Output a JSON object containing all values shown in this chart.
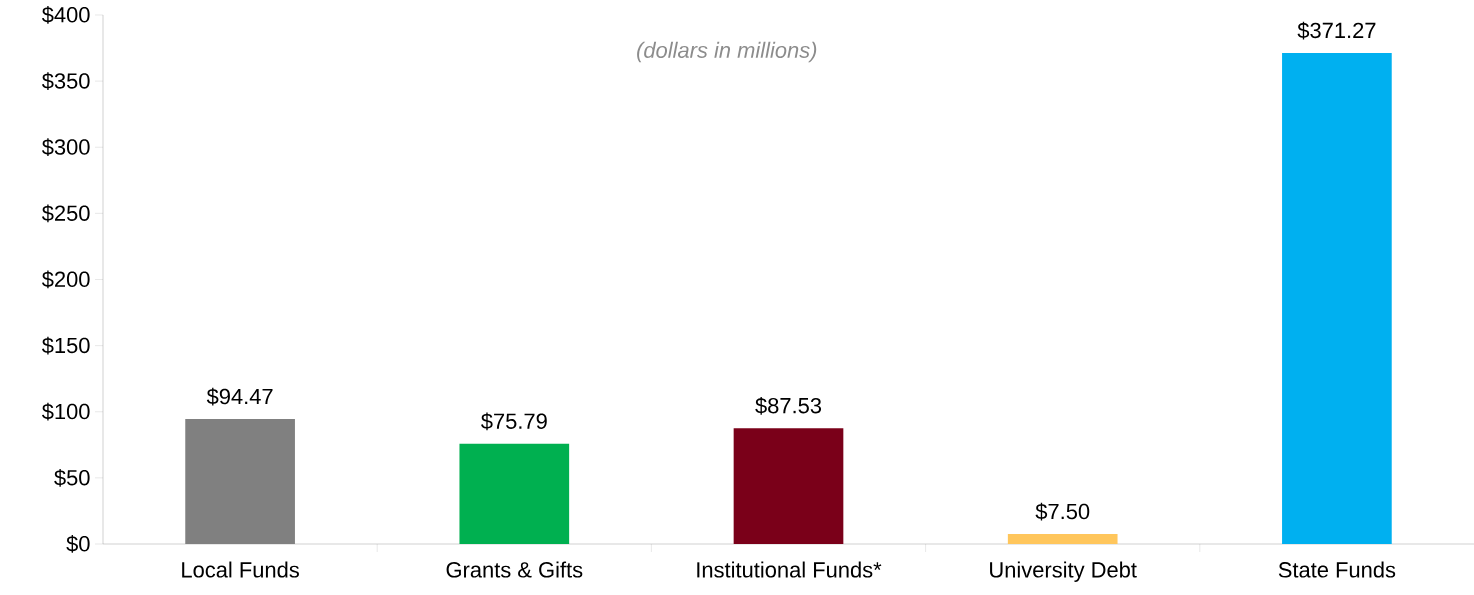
{
  "chart_data": {
    "type": "bar",
    "categories": [
      "Local Funds",
      "Grants & Gifts",
      "Institutional Funds*",
      "University Debt",
      "State Funds"
    ],
    "values": [
      94.47,
      75.79,
      87.53,
      7.5,
      371.27
    ],
    "colors": [
      "#808080",
      "#00b050",
      "#7a0019",
      "#ffc65c",
      "#00b0f0"
    ],
    "value_labels": [
      "$94.47",
      "$75.79",
      "$87.53",
      "$7.50",
      "$371.27"
    ],
    "ylim": [
      0,
      400
    ],
    "yticks": [
      {
        "value": 0,
        "label": "$0"
      },
      {
        "value": 50,
        "label": "$50"
      },
      {
        "value": 100,
        "label": "$100"
      },
      {
        "value": 150,
        "label": "$150"
      },
      {
        "value": 200,
        "label": "$200"
      },
      {
        "value": 250,
        "label": "$250"
      },
      {
        "value": 300,
        "label": "$300"
      },
      {
        "value": 350,
        "label": "$350"
      },
      {
        "value": 400,
        "label": "$400"
      }
    ],
    "annotations": [
      "(dollars in millions)"
    ],
    "grid": false
  }
}
